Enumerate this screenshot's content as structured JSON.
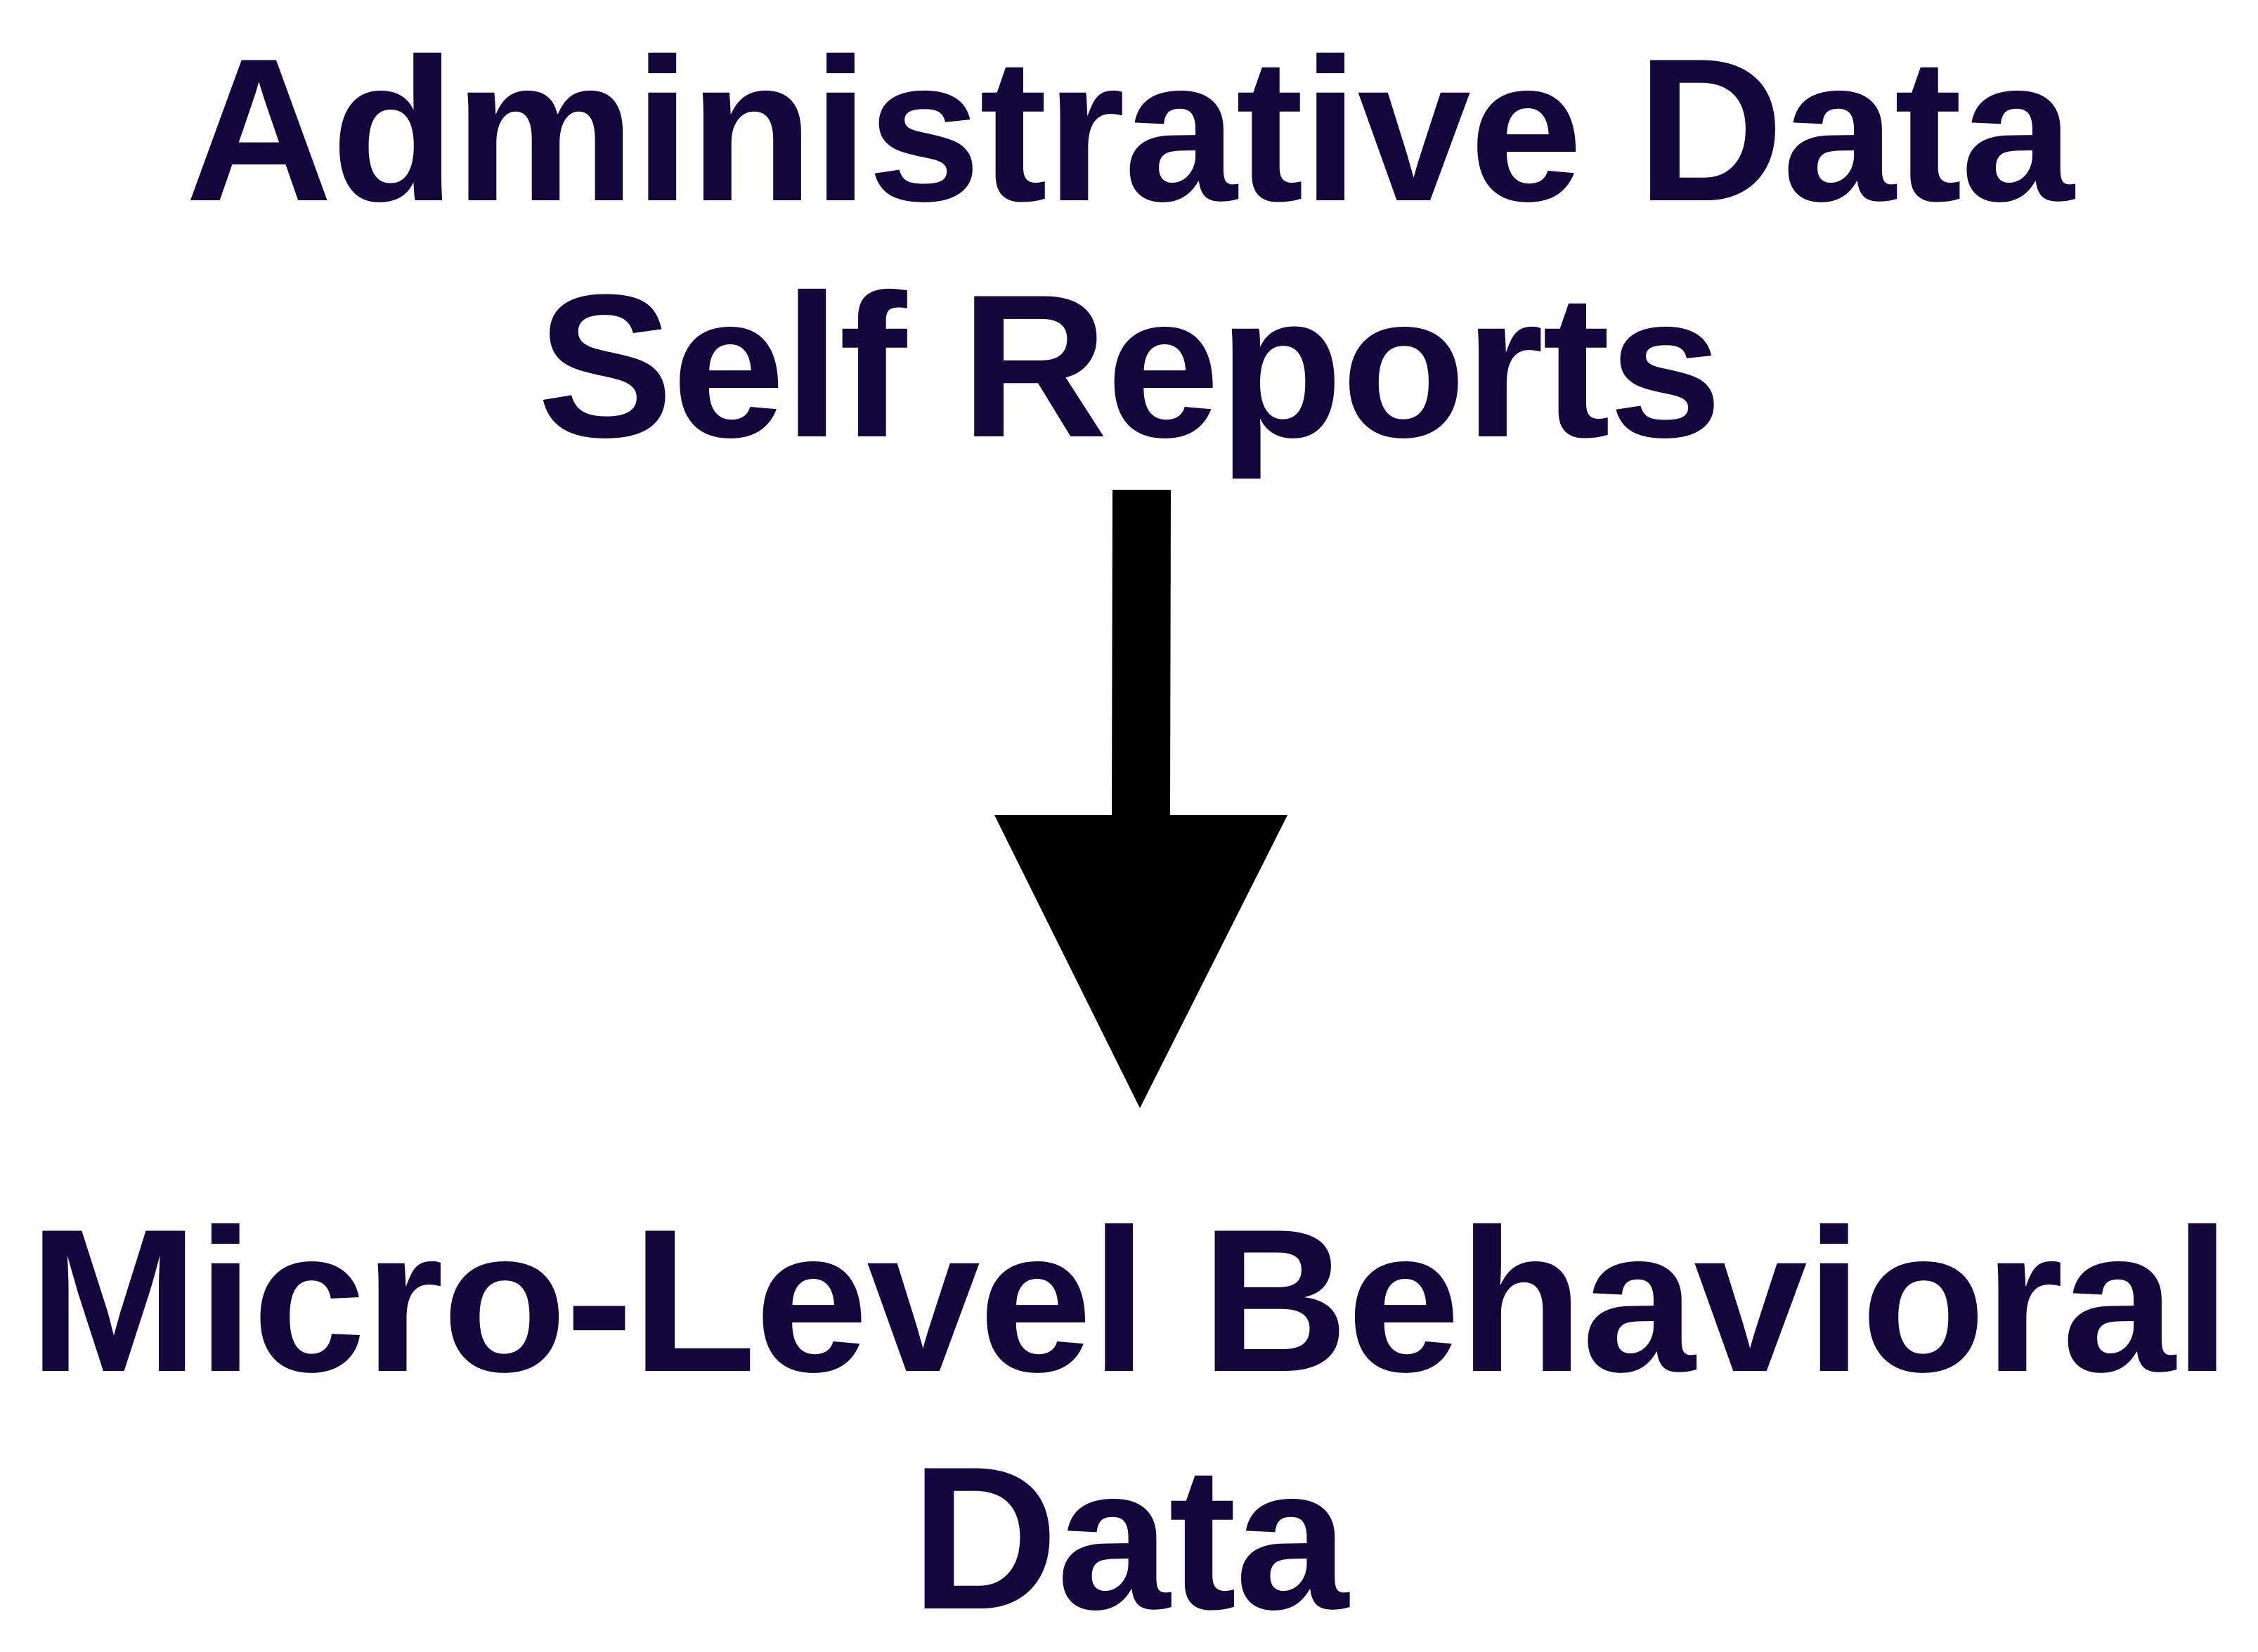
{
  "diagram": {
    "source_line_1": "Administrative Data",
    "source_line_2": "Self Reports",
    "target_line_1": "Micro-Level Behavioral",
    "target_line_2": "Data"
  },
  "colors": {
    "text": "#14073d",
    "arrow": "#000000"
  },
  "icons": {
    "arrow": "arrow-down-icon"
  }
}
